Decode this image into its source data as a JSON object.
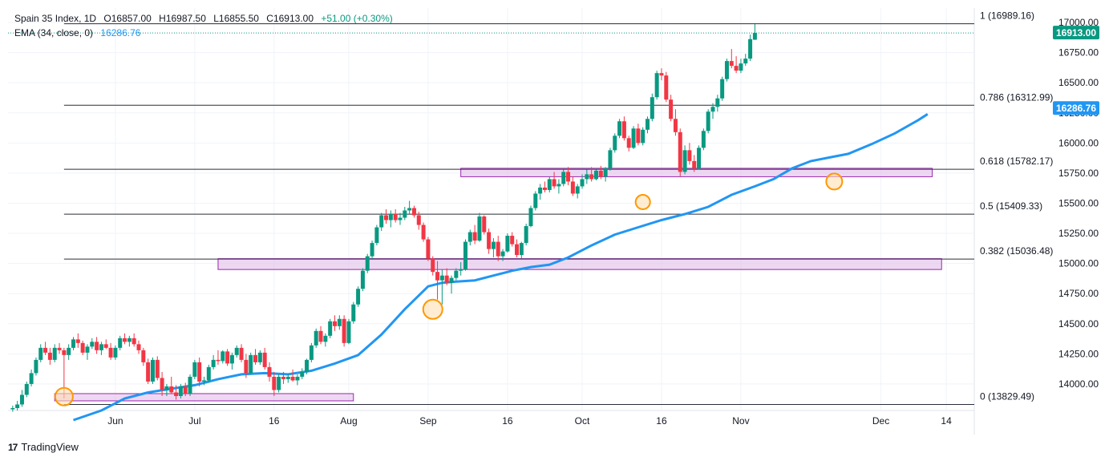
{
  "header": {
    "symbol": "Spain 35 Index, 1D",
    "open": "O16857.00",
    "high": "H16987.50",
    "low": "L16855.50",
    "close": "C16913.00",
    "change": "+51.00 (+0.30%)",
    "ema_label": "EMA (34, close, 0)",
    "ema_value": "16286.76"
  },
  "branding": {
    "logo_text": "TradingView"
  },
  "colors": {
    "up": "#089981",
    "down": "#f23645",
    "ema": "#2196f3",
    "zone": "#e1bee7",
    "zone_border": "#9c27b0",
    "circle": "#ff9800"
  },
  "chart_data": {
    "type": "candlestick",
    "ylim": [
      13780,
      17120
    ],
    "y_ticks": [
      "17000.00",
      "16750.00",
      "16500.00",
      "16250.00",
      "16000.00",
      "15750.00",
      "15500.00",
      "15250.00",
      "15000.00",
      "14750.00",
      "14500.00",
      "14250.00",
      "14000.00"
    ],
    "y_tick_values": [
      17000,
      16750,
      16500,
      16250,
      16000,
      15750,
      15500,
      15250,
      15000,
      14750,
      14500,
      14250,
      14000
    ],
    "x_labels": [
      "Jun",
      "Jul",
      "16",
      "Aug",
      "Sep",
      "16",
      "Oct",
      "16",
      "Nov",
      "Dec",
      "14"
    ],
    "x_label_days": [
      23,
      40,
      57,
      73,
      90,
      107,
      123,
      140,
      157,
      187,
      201
    ],
    "last_price": {
      "value": 16913,
      "label": "16913.00"
    },
    "ema_price": {
      "value": 16286.76,
      "label": "16286.76"
    },
    "fib_levels": [
      {
        "label": "1 (16989.16)",
        "value": 16989.16
      },
      {
        "label": "0.786 (16312.99)",
        "value": 16312.99
      },
      {
        "label": "0.618 (15782.17)",
        "value": 15782.17
      },
      {
        "label": "0.5 (15409.33)",
        "value": 15409.33
      },
      {
        "label": "0.382 (15036.48)",
        "value": 15036.48
      },
      {
        "label": "0 (13829.49)",
        "value": 13829.49
      }
    ],
    "zones": [
      {
        "from_day": 10,
        "to_day": 74,
        "low": 13860,
        "high": 13920
      },
      {
        "from_day": 45,
        "to_day": 200,
        "low": 14950,
        "high": 15040
      },
      {
        "from_day": 97,
        "to_day": 198,
        "low": 15720,
        "high": 15790
      }
    ],
    "circles": [
      {
        "day": 12,
        "value": 13895,
        "r": 11
      },
      {
        "day": 91,
        "value": 14620,
        "r": 12
      },
      {
        "day": 136,
        "value": 15510,
        "r": 9
      },
      {
        "day": 177,
        "value": 15680,
        "r": 10
      }
    ],
    "ema_values": [
      [
        14,
        13700
      ],
      [
        20,
        13780
      ],
      [
        25,
        13880
      ],
      [
        30,
        13930
      ],
      [
        35,
        13960
      ],
      [
        40,
        13990
      ],
      [
        45,
        14040
      ],
      [
        50,
        14080
      ],
      [
        55,
        14090
      ],
      [
        60,
        14080
      ],
      [
        65,
        14110
      ],
      [
        70,
        14170
      ],
      [
        75,
        14240
      ],
      [
        80,
        14410
      ],
      [
        85,
        14620
      ],
      [
        90,
        14810
      ],
      [
        93,
        14840
      ],
      [
        96,
        14850
      ],
      [
        100,
        14860
      ],
      [
        104,
        14900
      ],
      [
        108,
        14940
      ],
      [
        112,
        14970
      ],
      [
        116,
        14990
      ],
      [
        120,
        15050
      ],
      [
        125,
        15150
      ],
      [
        130,
        15240
      ],
      [
        135,
        15300
      ],
      [
        140,
        15360
      ],
      [
        145,
        15410
      ],
      [
        150,
        15470
      ],
      [
        155,
        15570
      ],
      [
        160,
        15640
      ],
      [
        164,
        15700
      ],
      [
        168,
        15790
      ],
      [
        172,
        15850
      ],
      [
        176,
        15880
      ],
      [
        180,
        15910
      ],
      [
        185,
        15990
      ],
      [
        190,
        16080
      ],
      [
        195,
        16190
      ],
      [
        197,
        16240
      ]
    ],
    "candles": [
      [
        1,
        13790,
        13820,
        13770,
        13800
      ],
      [
        2,
        13800,
        13860,
        13780,
        13830
      ],
      [
        3,
        13830,
        13950,
        13810,
        13910
      ],
      [
        4,
        13910,
        14020,
        13890,
        14000
      ],
      [
        5,
        14000,
        14120,
        13980,
        14090
      ],
      [
        6,
        14090,
        14220,
        14070,
        14200
      ],
      [
        7,
        14200,
        14330,
        14180,
        14300
      ],
      [
        8,
        14300,
        14350,
        14240,
        14260
      ],
      [
        9,
        14260,
        14300,
        14160,
        14200
      ],
      [
        10,
        14200,
        14330,
        14180,
        14300
      ],
      [
        11,
        14300,
        14340,
        14250,
        14280
      ],
      [
        12,
        14280,
        14300,
        13880,
        14240
      ],
      [
        13,
        14240,
        14330,
        14200,
        14300
      ],
      [
        14,
        14300,
        14390,
        14280,
        14370
      ],
      [
        15,
        14370,
        14420,
        14300,
        14340
      ],
      [
        16,
        14340,
        14360,
        14240,
        14260
      ],
      [
        17,
        14260,
        14330,
        14200,
        14310
      ],
      [
        18,
        14310,
        14380,
        14290,
        14350
      ],
      [
        19,
        14350,
        14390,
        14250,
        14280
      ],
      [
        20,
        14280,
        14350,
        14240,
        14330
      ],
      [
        21,
        14330,
        14370,
        14290,
        14300
      ],
      [
        22,
        14300,
        14340,
        14200,
        14220
      ],
      [
        23,
        14220,
        14320,
        14200,
        14300
      ],
      [
        24,
        14300,
        14400,
        14280,
        14380
      ],
      [
        25,
        14380,
        14420,
        14330,
        14350
      ],
      [
        26,
        14350,
        14400,
        14310,
        14380
      ],
      [
        27,
        14380,
        14420,
        14310,
        14330
      ],
      [
        28,
        14330,
        14360,
        14250,
        14280
      ],
      [
        29,
        14280,
        14300,
        14150,
        14180
      ],
      [
        30,
        14180,
        14210,
        14000,
        14020
      ],
      [
        31,
        14020,
        14220,
        14000,
        14200
      ],
      [
        32,
        14200,
        14230,
        14030,
        14050
      ],
      [
        33,
        14050,
        14100,
        13900,
        13950
      ],
      [
        34,
        13950,
        14000,
        13900,
        13980
      ],
      [
        35,
        13980,
        14060,
        13920,
        13930
      ],
      [
        36,
        13930,
        13990,
        13870,
        13900
      ],
      [
        37,
        13900,
        14000,
        13880,
        13980
      ],
      [
        38,
        13980,
        14010,
        13900,
        13920
      ],
      [
        39,
        13920,
        14080,
        13900,
        14060
      ],
      [
        40,
        14060,
        14200,
        14040,
        14180
      ],
      [
        41,
        14180,
        14220,
        13980,
        14020
      ],
      [
        42,
        14020,
        14060,
        13990,
        14030
      ],
      [
        43,
        14030,
        14160,
        14010,
        14140
      ],
      [
        44,
        14140,
        14240,
        14120,
        14200
      ],
      [
        45,
        14200,
        14280,
        14160,
        14190
      ],
      [
        46,
        14190,
        14280,
        14170,
        14270
      ],
      [
        47,
        14270,
        14290,
        14150,
        14170
      ],
      [
        48,
        14170,
        14260,
        14120,
        14240
      ],
      [
        49,
        14240,
        14320,
        14220,
        14300
      ],
      [
        50,
        14300,
        14330,
        14180,
        14200
      ],
      [
        51,
        14200,
        14250,
        14050,
        14090
      ],
      [
        52,
        14090,
        14260,
        14080,
        14240
      ],
      [
        53,
        14240,
        14290,
        14160,
        14180
      ],
      [
        54,
        14180,
        14280,
        14160,
        14260
      ],
      [
        55,
        14260,
        14300,
        14120,
        14140
      ],
      [
        56,
        14140,
        14180,
        14020,
        14060
      ],
      [
        57,
        14060,
        14100,
        13900,
        13950
      ],
      [
        58,
        13950,
        14080,
        13930,
        14060
      ],
      [
        59,
        14060,
        14100,
        14000,
        14040
      ],
      [
        60,
        14040,
        14080,
        14010,
        14060
      ],
      [
        61,
        14060,
        14120,
        14020,
        14030
      ],
      [
        62,
        14030,
        14080,
        13990,
        14060
      ],
      [
        63,
        14060,
        14130,
        14040,
        14100
      ],
      [
        64,
        14100,
        14210,
        14080,
        14200
      ],
      [
        65,
        14200,
        14340,
        14180,
        14320
      ],
      [
        66,
        14320,
        14460,
        14300,
        14440
      ],
      [
        67,
        14440,
        14480,
        14330,
        14350
      ],
      [
        68,
        14350,
        14420,
        14310,
        14400
      ],
      [
        69,
        14400,
        14540,
        14380,
        14520
      ],
      [
        70,
        14520,
        14570,
        14440,
        14480
      ],
      [
        71,
        14480,
        14570,
        14450,
        14540
      ],
      [
        72,
        14540,
        14570,
        14310,
        14340
      ],
      [
        73,
        14340,
        14540,
        14330,
        14520
      ],
      [
        74,
        14520,
        14680,
        14500,
        14660
      ],
      [
        75,
        14660,
        14810,
        14640,
        14790
      ],
      [
        76,
        14790,
        14960,
        14770,
        14940
      ],
      [
        77,
        14940,
        15080,
        14920,
        15060
      ],
      [
        78,
        15060,
        15190,
        15030,
        15170
      ],
      [
        79,
        15170,
        15320,
        15150,
        15300
      ],
      [
        80,
        15300,
        15420,
        15270,
        15400
      ],
      [
        81,
        15400,
        15450,
        15330,
        15360
      ],
      [
        82,
        15360,
        15440,
        15300,
        15410
      ],
      [
        83,
        15410,
        15450,
        15340,
        15360
      ],
      [
        84,
        15360,
        15420,
        15320,
        15380
      ],
      [
        85,
        15380,
        15470,
        15360,
        15440
      ],
      [
        86,
        15440,
        15520,
        15410,
        15460
      ],
      [
        87,
        15460,
        15480,
        15380,
        15400
      ],
      [
        88,
        15400,
        15430,
        15280,
        15320
      ],
      [
        89,
        15320,
        15340,
        15180,
        15200
      ],
      [
        90,
        15200,
        15220,
        15020,
        15040
      ],
      [
        91,
        15040,
        15060,
        14900,
        14930
      ],
      [
        92,
        14930,
        15020,
        14700,
        14860
      ],
      [
        93,
        14860,
        14950,
        14660,
        14900
      ],
      [
        94,
        14900,
        14960,
        14820,
        14840
      ],
      [
        95,
        14840,
        14900,
        14750,
        14880
      ],
      [
        96,
        14880,
        14960,
        14860,
        14940
      ],
      [
        97,
        14940,
        15010,
        14900,
        14950
      ],
      [
        98,
        14950,
        15200,
        14940,
        15180
      ],
      [
        99,
        15180,
        15280,
        15150,
        15260
      ],
      [
        100,
        15260,
        15320,
        15160,
        15190
      ],
      [
        101,
        15190,
        15420,
        15180,
        15390
      ],
      [
        102,
        15390,
        15400,
        15240,
        15260
      ],
      [
        103,
        15260,
        15290,
        15080,
        15120
      ],
      [
        104,
        15120,
        15210,
        15050,
        15180
      ],
      [
        105,
        15180,
        15230,
        15020,
        15060
      ],
      [
        106,
        15060,
        15120,
        15020,
        15100
      ],
      [
        107,
        15100,
        15250,
        15090,
        15230
      ],
      [
        108,
        15230,
        15260,
        15140,
        15160
      ],
      [
        109,
        15160,
        15200,
        15050,
        15070
      ],
      [
        110,
        15070,
        15180,
        15040,
        15170
      ],
      [
        111,
        15170,
        15330,
        15150,
        15310
      ],
      [
        112,
        15310,
        15480,
        15300,
        15460
      ],
      [
        113,
        15460,
        15600,
        15440,
        15580
      ],
      [
        114,
        15580,
        15660,
        15530,
        15630
      ],
      [
        115,
        15630,
        15680,
        15590,
        15610
      ],
      [
        116,
        15610,
        15720,
        15590,
        15700
      ],
      [
        117,
        15700,
        15760,
        15620,
        15640
      ],
      [
        118,
        15640,
        15700,
        15580,
        15660
      ],
      [
        119,
        15660,
        15780,
        15640,
        15760
      ],
      [
        120,
        15760,
        15800,
        15650,
        15680
      ],
      [
        121,
        15680,
        15720,
        15560,
        15580
      ],
      [
        122,
        15580,
        15660,
        15540,
        15640
      ],
      [
        123,
        15640,
        15740,
        15620,
        15700
      ],
      [
        124,
        15700,
        15780,
        15660,
        15740
      ],
      [
        125,
        15740,
        15800,
        15680,
        15700
      ],
      [
        126,
        15700,
        15780,
        15690,
        15770
      ],
      [
        127,
        15770,
        15810,
        15700,
        15720
      ],
      [
        128,
        15720,
        15800,
        15680,
        15790
      ],
      [
        129,
        15790,
        15960,
        15770,
        15940
      ],
      [
        130,
        15940,
        16080,
        15920,
        16060
      ],
      [
        131,
        16060,
        16200,
        16040,
        16180
      ],
      [
        132,
        16180,
        16220,
        16020,
        16040
      ],
      [
        133,
        16040,
        16060,
        15930,
        15960
      ],
      [
        134,
        15960,
        16140,
        15950,
        16120
      ],
      [
        135,
        16120,
        16160,
        15980,
        16000
      ],
      [
        136,
        16000,
        16130,
        15980,
        16110
      ],
      [
        137,
        16110,
        16220,
        16080,
        16200
      ],
      [
        138,
        16200,
        16410,
        16180,
        16380
      ],
      [
        139,
        16380,
        16600,
        16360,
        16580
      ],
      [
        140,
        16580,
        16620,
        16520,
        16560
      ],
      [
        141,
        16560,
        16590,
        16340,
        16360
      ],
      [
        142,
        16360,
        16400,
        16180,
        16200
      ],
      [
        143,
        16200,
        16280,
        16060,
        16090
      ],
      [
        144,
        16090,
        16120,
        15720,
        15760
      ],
      [
        145,
        15760,
        15980,
        15740,
        15940
      ],
      [
        146,
        15940,
        16000,
        15820,
        15850
      ],
      [
        147,
        15850,
        15900,
        15760,
        15790
      ],
      [
        148,
        15790,
        15980,
        15780,
        15960
      ],
      [
        149,
        15960,
        16120,
        15940,
        16100
      ],
      [
        150,
        16100,
        16280,
        16080,
        16260
      ],
      [
        151,
        16260,
        16330,
        16200,
        16300
      ],
      [
        152,
        16300,
        16400,
        16260,
        16370
      ],
      [
        153,
        16370,
        16550,
        16350,
        16530
      ],
      [
        154,
        16530,
        16700,
        16510,
        16680
      ],
      [
        155,
        16680,
        16780,
        16620,
        16640
      ],
      [
        156,
        16640,
        16720,
        16580,
        16600
      ],
      [
        157,
        16600,
        16700,
        16580,
        16660
      ],
      [
        158,
        16660,
        16740,
        16640,
        16700
      ],
      [
        159,
        16700,
        16900,
        16680,
        16862
      ],
      [
        160,
        16857,
        16987.5,
        16855.5,
        16913
      ]
    ]
  }
}
